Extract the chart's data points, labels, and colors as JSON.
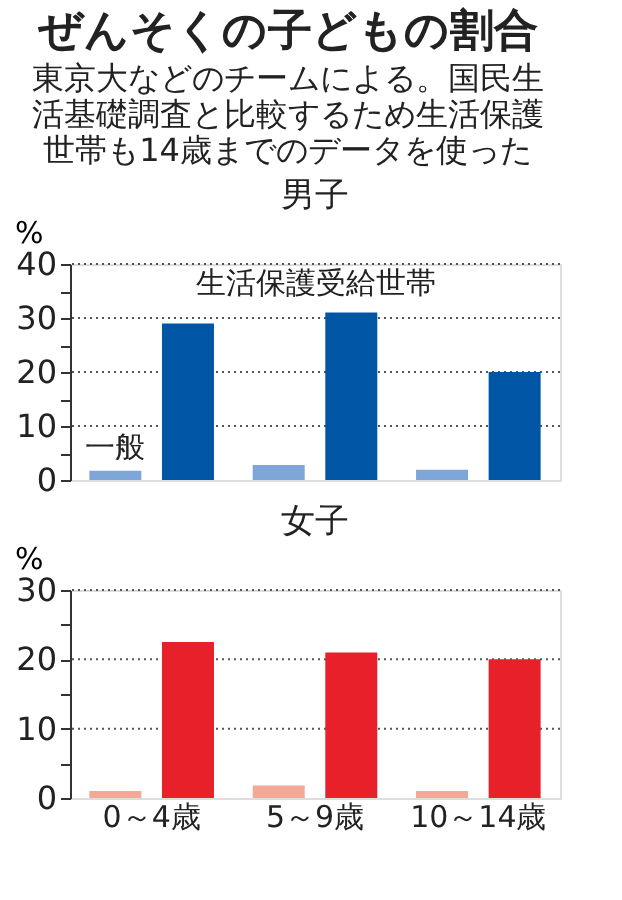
{
  "chart_data": [
    {
      "type": "other",
      "title": "ぜんそくの子どもの割合",
      "subtitle": "東京大などのチームによる。国民生活基礎調査と比較するため生活保護世帯も14歳までのデータを使った"
    },
    {
      "type": "bar",
      "title": "男子",
      "ylabel": "%",
      "categories": [
        null,
        null,
        null
      ],
      "series": [
        {
          "name": "一般",
          "color": "#7ea6d8",
          "values": [
            1.7,
            2.8,
            1.9
          ]
        },
        {
          "name": "生活保護受給世帯",
          "color": "#0055a5",
          "values": [
            29,
            31,
            20
          ]
        }
      ],
      "ylim": [
        0,
        40
      ],
      "yticks": [
        0,
        {
          "value": 5,
          "label": null
        },
        10,
        {
          "value": 15,
          "label": null
        },
        20,
        {
          "value": 25,
          "label": null
        },
        30,
        {
          "value": 35,
          "label": null
        },
        40
      ],
      "grid": "y",
      "legend": false,
      "tick_labels": "y"
    },
    {
      "type": "bar",
      "title": "女子",
      "ylabel": "%",
      "categories": [
        "0～4歳",
        "5～9歳",
        "10～14歳"
      ],
      "series": [
        {
          "color": "#f4a896",
          "values": [
            1.0,
            1.8,
            1.0
          ]
        },
        {
          "color": "#e8202a",
          "values": [
            22.5,
            21,
            20
          ]
        }
      ],
      "ylim": [
        0,
        30
      ],
      "yticks": [
        0,
        {
          "value": 5,
          "label": null
        },
        10,
        {
          "value": 15,
          "label": null
        },
        20,
        {
          "value": 25,
          "label": null
        },
        30
      ],
      "grid": "y",
      "legend": false
    }
  ]
}
